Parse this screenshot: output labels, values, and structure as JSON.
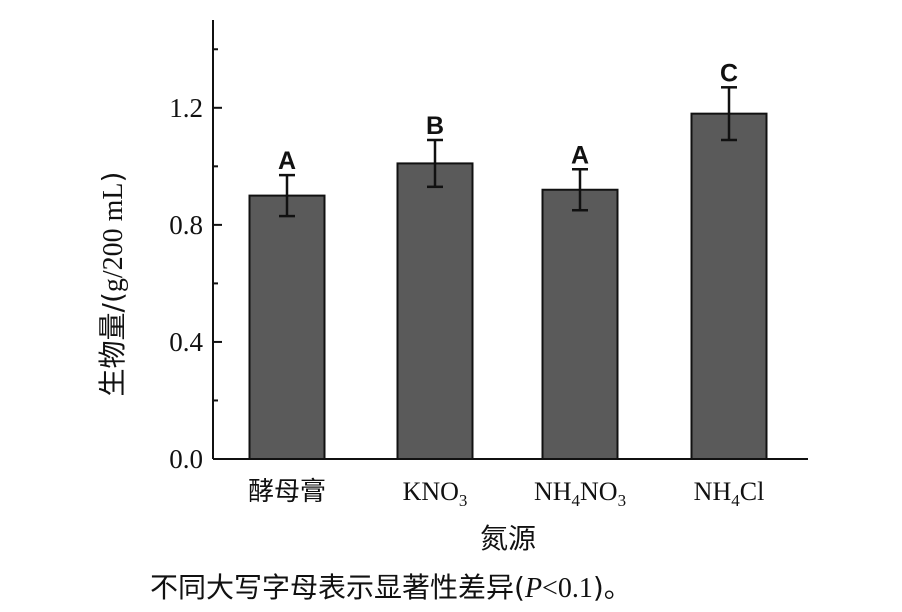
{
  "chart_data": {
    "type": "bar",
    "categories": [
      "酵母膏",
      "KNO3",
      "NH4NO3",
      "NH4Cl"
    ],
    "category_parts": [
      [
        {
          "t": "酵母膏",
          "sub": false
        }
      ],
      [
        {
          "t": "KNO",
          "sub": false
        },
        {
          "t": "3",
          "sub": true
        }
      ],
      [
        {
          "t": "NH",
          "sub": false
        },
        {
          "t": "4",
          "sub": true
        },
        {
          "t": "NO",
          "sub": false
        },
        {
          "t": "3",
          "sub": true
        }
      ],
      [
        {
          "t": "NH",
          "sub": false
        },
        {
          "t": "4",
          "sub": true
        },
        {
          "t": "Cl",
          "sub": false
        }
      ]
    ],
    "values": [
      0.9,
      1.01,
      0.92,
      1.18
    ],
    "error": [
      0.07,
      0.08,
      0.07,
      0.09
    ],
    "significance": [
      "A",
      "B",
      "A",
      "C"
    ],
    "xlabel": "氮源",
    "ylabel": "生物量/(g/200 mL)",
    "ylabel_parts": [
      {
        "t": "生物量/(",
        "serif": false
      },
      {
        "t": "g/200 mL",
        "serif": true
      },
      {
        "t": ")",
        "serif": false
      }
    ],
    "ylim": [
      0,
      1.5
    ],
    "yticks": [
      0.0,
      0.4,
      0.8,
      1.2
    ],
    "ytick_labels": [
      "0.0",
      "0.4",
      "0.8",
      "1.2"
    ],
    "grid": false,
    "bar_color": "#5a5a5a"
  },
  "footnote": {
    "prefix": "不同大写字母表示显著性差异(",
    "p_symbol": "P",
    "condition": "<0.1",
    "suffix": ")。"
  }
}
